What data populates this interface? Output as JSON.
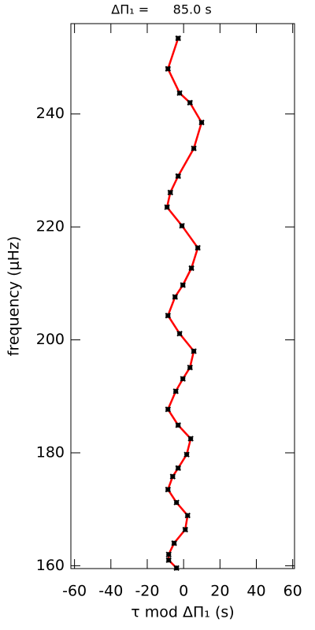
{
  "chart_data": {
    "type": "line",
    "title": "ΔΠ₁ =      85.0 s",
    "x_label": "τ mod ΔΠ₁ (s)",
    "y_label": "frequency (μHz)",
    "x": [
      -3.9,
      -8.2,
      -8.2,
      -5.2,
      0.9,
      2.2,
      -3.9,
      -8.6,
      -6.0,
      -3.0,
      1.7,
      3.9,
      -3.0,
      -8.6,
      -4.3,
      -0.4,
      3.5,
      5.6,
      -2.2,
      -8.6,
      -4.7,
      -0.4,
      4.3,
      7.8,
      -0.9,
      -9.1,
      -7.3,
      -3.0,
      5.6,
      9.9,
      3.5,
      -2.2,
      -8.6,
      -3.0
    ],
    "values": [
      159.6,
      161.0,
      162.0,
      164.0,
      166.4,
      168.9,
      171.2,
      173.5,
      175.8,
      177.3,
      179.7,
      182.5,
      184.9,
      187.7,
      190.9,
      193.1,
      195.1,
      198.0,
      201.1,
      204.3,
      207.6,
      209.7,
      212.7,
      216.3,
      220.2,
      223.5,
      226.1,
      229.0,
      233.9,
      238.5,
      242.0,
      243.7,
      248.0,
      253.4
    ],
    "color": "#ff0000",
    "marker_color": "#000000",
    "xlim": [
      -62,
      61
    ],
    "ylim": [
      159.5,
      256
    ],
    "xticks": [
      -60,
      -40,
      -20,
      0,
      20,
      40,
      60
    ],
    "yticks": [
      160,
      180,
      200,
      220,
      240
    ]
  }
}
